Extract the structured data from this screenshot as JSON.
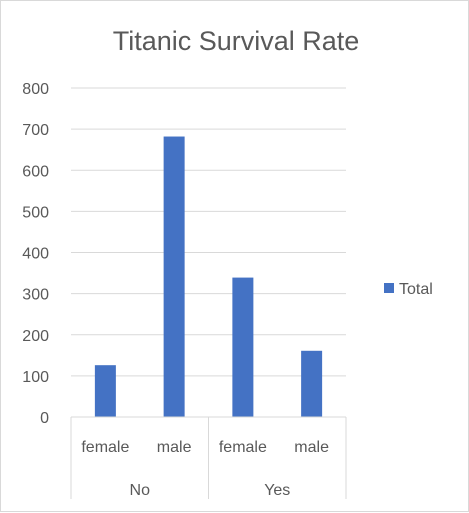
{
  "chart_data": {
    "type": "bar",
    "title": "Titanic Survival Rate",
    "xlabel": "",
    "ylabel": "",
    "ylim": [
      0,
      800
    ],
    "yticks": [
      0,
      100,
      200,
      300,
      400,
      500,
      600,
      700,
      800
    ],
    "grid": true,
    "legend_position": "right",
    "groups": [
      {
        "label": "No",
        "categories": [
          "female",
          "male"
        ]
      },
      {
        "label": "Yes",
        "categories": [
          "female",
          "male"
        ]
      }
    ],
    "categories": [
      "female",
      "male",
      "female",
      "male"
    ],
    "series": [
      {
        "name": "Total",
        "color": "#4472c4",
        "values": [
          126,
          682,
          339,
          161
        ]
      }
    ]
  }
}
